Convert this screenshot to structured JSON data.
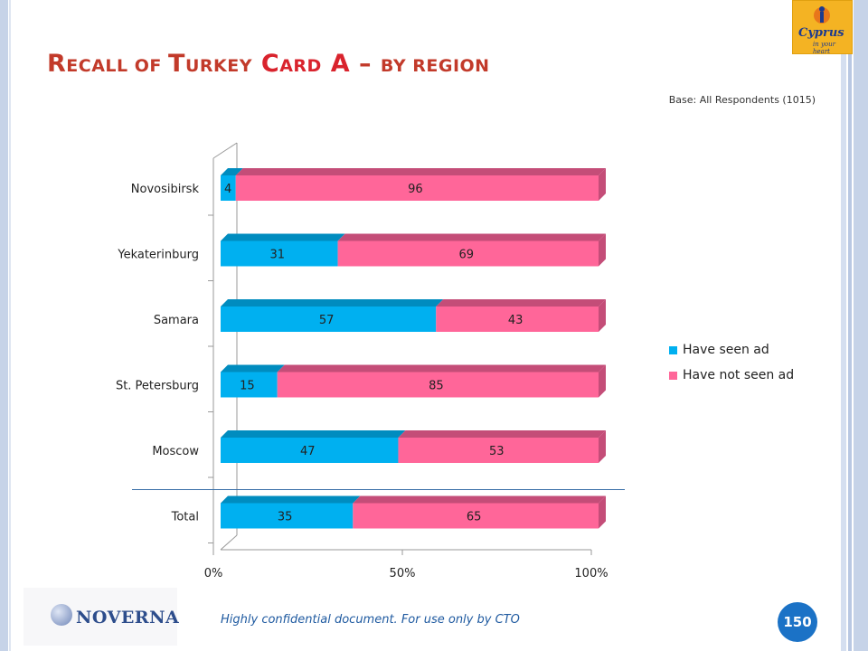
{
  "title": {
    "r": "R",
    "ecall": "ECALL",
    "of": " OF ",
    "t": "T",
    "urkey": "URKEY",
    "c": "C",
    "ard": "ARD",
    "a": " A",
    "dash": " – ",
    "by_region": "BY REGION"
  },
  "base_note": "Base: All Respondents (1015)",
  "logo": {
    "text": "Cyprus",
    "sub": "in your heart"
  },
  "footer": "Highly confidential document. For use only by CTO",
  "company": "NOVERNA",
  "page_number": "150",
  "colors": {
    "seen": "#00b0f0",
    "not_seen": "#ff6699",
    "seen_dark": "#008cbf",
    "not_seen_dark": "#c44d78"
  },
  "chart_data": {
    "type": "bar",
    "orientation": "horizontal",
    "stacked": true,
    "percent_stacked": true,
    "categories": [
      "Novosibirsk",
      "Yekaterinburg",
      "Samara",
      "St. Petersburg",
      "Moscow",
      "Total"
    ],
    "series": [
      {
        "name": "Have seen ad",
        "values": [
          4,
          31,
          57,
          15,
          47,
          35
        ]
      },
      {
        "name": "Have not seen ad",
        "values": [
          96,
          69,
          43,
          85,
          53,
          65
        ]
      }
    ],
    "x_ticks": [
      "0%",
      "50%",
      "100%"
    ],
    "xlim": [
      0,
      100
    ],
    "legend_position": "right"
  }
}
